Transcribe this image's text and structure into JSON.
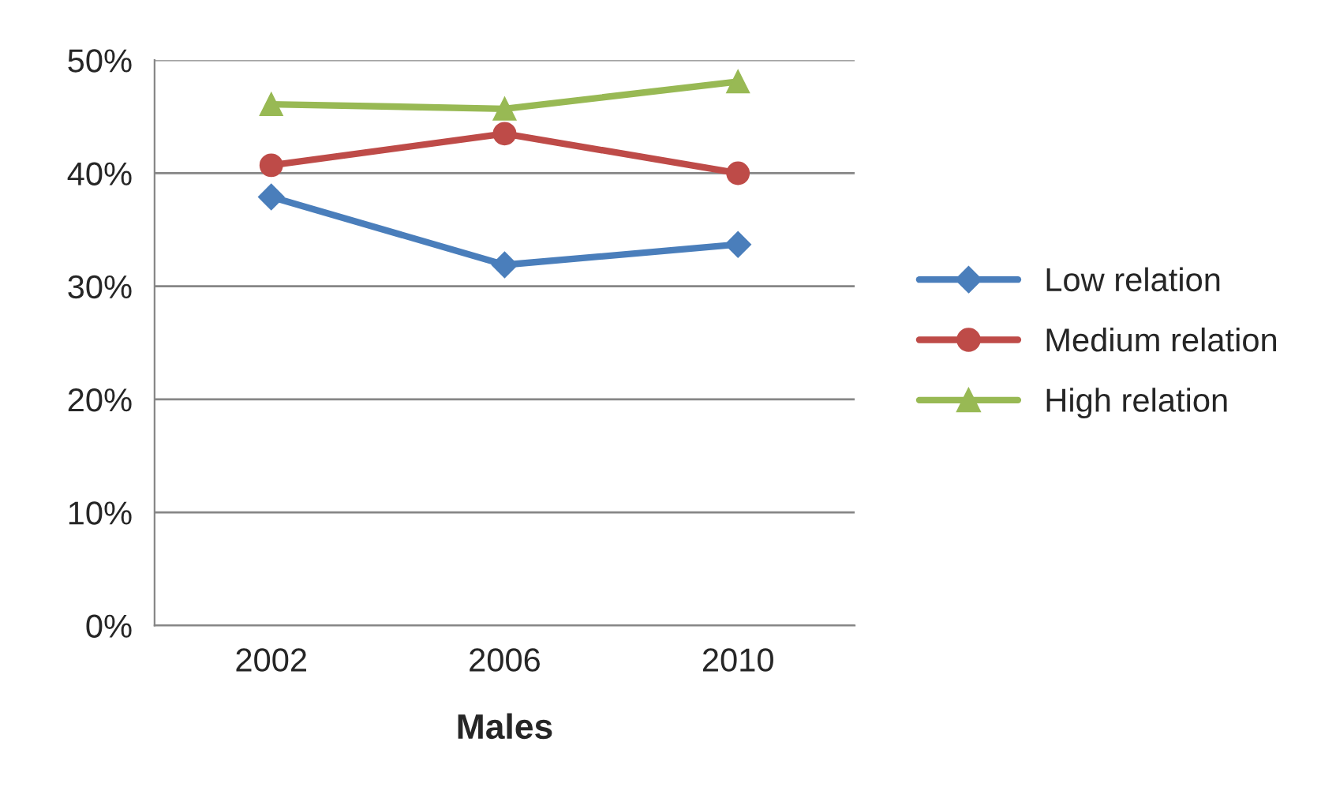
{
  "chart_data": {
    "type": "line",
    "xlabel": "Males",
    "categories": [
      "2002",
      "2006",
      "2010"
    ],
    "series": [
      {
        "name": "Low relation",
        "color": "#4a7ebb",
        "marker": "diamond",
        "values": [
          37.9,
          31.9,
          33.7
        ]
      },
      {
        "name": "Medium relation",
        "color": "#be4b48",
        "marker": "circle",
        "values": [
          40.7,
          43.5,
          40.0
        ]
      },
      {
        "name": "High relation",
        "color": "#98b954",
        "marker": "triangle",
        "values": [
          46.1,
          45.7,
          48.1
        ]
      }
    ],
    "ylim": [
      0,
      50
    ],
    "yticks": [
      {
        "value": 0,
        "label": "0%"
      },
      {
        "value": 10,
        "label": "10%"
      },
      {
        "value": 20,
        "label": "20%"
      },
      {
        "value": 30,
        "label": "30%"
      },
      {
        "value": 40,
        "label": "40%"
      },
      {
        "value": 50,
        "label": "50%"
      }
    ],
    "grid": "y",
    "legend": "right"
  }
}
